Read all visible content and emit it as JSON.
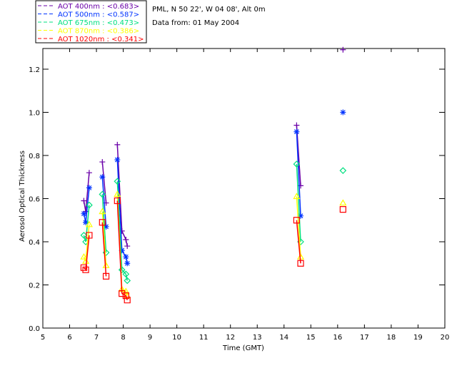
{
  "chart_data": {
    "type": "line",
    "title_lines": [
      "PML, N 50 22', W 04 08', Alt 0m",
      "Data from: 01 May 2004"
    ],
    "xlabel": "Time (GMT)",
    "ylabel": "Aerosol Optical Thickness",
    "xlim": [
      5,
      20
    ],
    "ylim": [
      0,
      1.3
    ],
    "xticks": [
      5,
      6,
      7,
      8,
      9,
      10,
      11,
      12,
      13,
      14,
      15,
      16,
      17,
      18,
      19,
      20
    ],
    "yticks": [
      "0.0",
      "0.2",
      "0.4",
      "0.6",
      "0.8",
      "1.0",
      "1.2"
    ],
    "x": [
      6.53,
      6.6,
      6.73,
      7.22,
      7.36,
      7.78,
      7.95,
      8.1,
      8.15,
      14.47,
      14.62,
      16.2
    ],
    "series": [
      {
        "name": "AOT  400nm : <0.683>",
        "color": "#6a00a8",
        "marker": "plus",
        "values": [
          0.59,
          0.54,
          0.72,
          0.77,
          0.58,
          0.85,
          0.45,
          0.41,
          0.38,
          0.94,
          0.66,
          1.29
        ]
      },
      {
        "name": "AOT  500nm : <0.587>",
        "color": "#0033ff",
        "marker": "star",
        "values": [
          0.53,
          0.49,
          0.65,
          0.7,
          0.47,
          0.78,
          0.36,
          0.33,
          0.3,
          0.91,
          0.52,
          1.0
        ]
      },
      {
        "name": "AOT  675nm : <0.473>",
        "color": "#00e080",
        "marker": "diamond",
        "values": [
          0.43,
          0.4,
          0.57,
          0.62,
          0.35,
          0.68,
          0.27,
          0.25,
          0.22,
          0.76,
          0.4,
          0.73
        ]
      },
      {
        "name": "AOT  870nm : <0.386>",
        "color": "#ffff00",
        "marker": "triangle",
        "values": [
          0.33,
          0.31,
          0.48,
          0.54,
          0.29,
          0.62,
          0.18,
          0.17,
          0.15,
          0.61,
          0.33,
          0.58
        ]
      },
      {
        "name": "AOT 1020nm : <0.341>",
        "color": "#ff0000",
        "marker": "square",
        "values": [
          0.28,
          0.27,
          0.43,
          0.49,
          0.24,
          0.59,
          0.16,
          0.15,
          0.13,
          0.5,
          0.3,
          0.55
        ]
      }
    ]
  }
}
